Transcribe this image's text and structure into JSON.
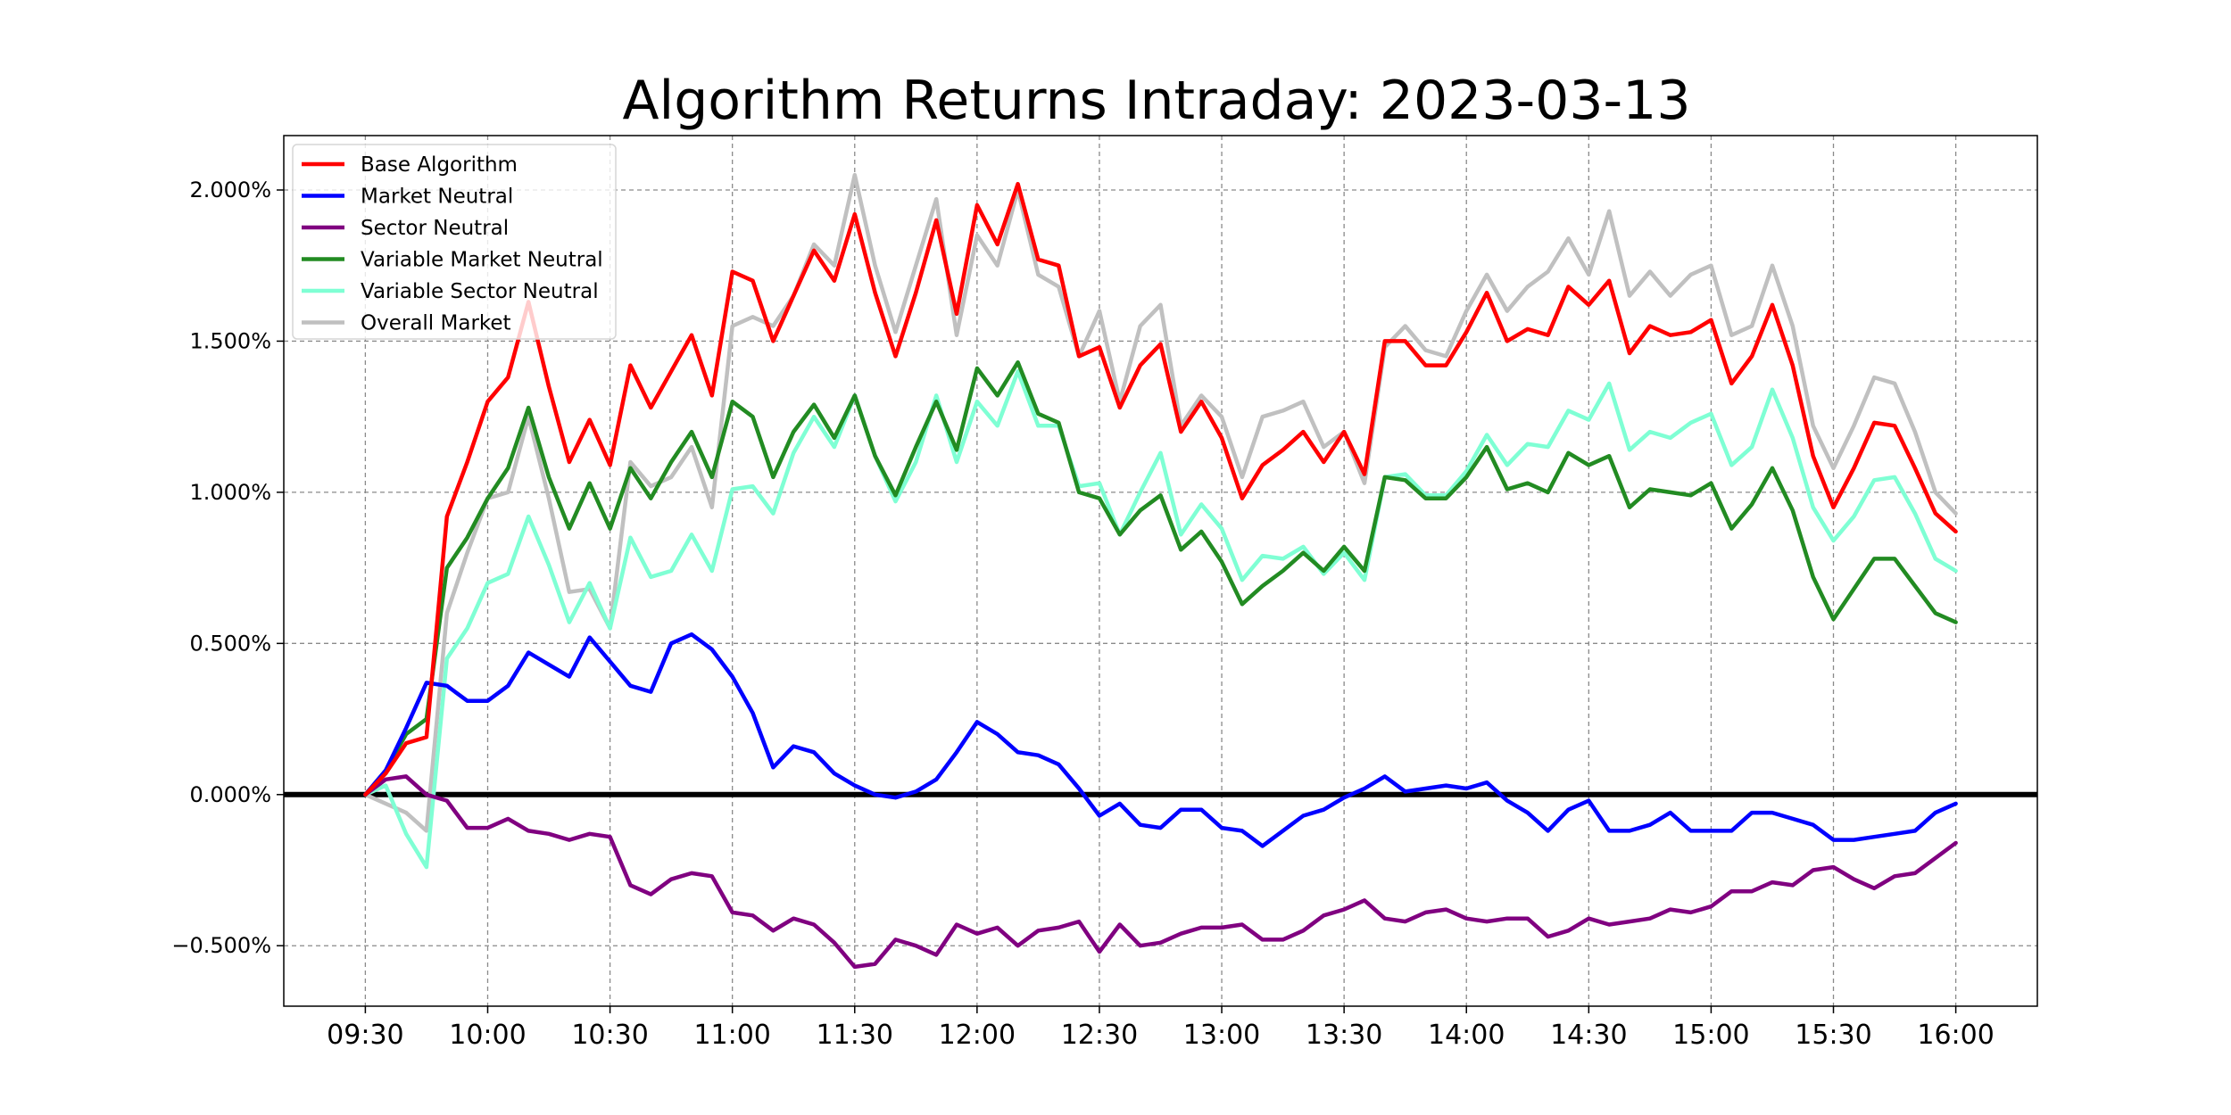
{
  "chart_data": {
    "type": "line",
    "title": "Algorithm Returns Intraday: 2023-03-13",
    "xlabel": "",
    "ylabel": "",
    "x_ticks": [
      "09:30",
      "10:00",
      "10:30",
      "11:00",
      "11:30",
      "12:00",
      "12:30",
      "13:00",
      "13:30",
      "14:00",
      "14:30",
      "15:00",
      "15:30",
      "16:00"
    ],
    "x_range_minutes": [
      -20,
      410
    ],
    "x_minutes": [
      0,
      5,
      10,
      15,
      20,
      25,
      30,
      35,
      40,
      45,
      50,
      55,
      60,
      65,
      70,
      75,
      80,
      85,
      90,
      95,
      100,
      105,
      110,
      115,
      120,
      125,
      130,
      135,
      140,
      145,
      150,
      155,
      160,
      165,
      170,
      175,
      180,
      185,
      190,
      195,
      200,
      205,
      210,
      215,
      220,
      225,
      230,
      235,
      240,
      245,
      250,
      255,
      260,
      265,
      270,
      275,
      280,
      285,
      290,
      295,
      300,
      305,
      310,
      315,
      320,
      325,
      330,
      335,
      340,
      345,
      350,
      355,
      360,
      365,
      370,
      375,
      380,
      385,
      390
    ],
    "ylim": [
      -0.7,
      2.18
    ],
    "y_ticks": [
      -0.5,
      0,
      0.5,
      1.0,
      1.5,
      2.0
    ],
    "y_tick_labels": [
      "−0.500%",
      "0.000%",
      "0.500%",
      "1.000%",
      "1.500%",
      "2.000%"
    ],
    "y_unit": "%",
    "grid": true,
    "zero_line": true,
    "legend_position": "upper-left",
    "series": [
      {
        "name": "Overall Market",
        "color": "#c0c0c0",
        "values": [
          0,
          -0.03,
          -0.06,
          -0.12,
          0.6,
          0.8,
          0.98,
          1.0,
          1.25,
          0.98,
          0.67,
          0.68,
          0.55,
          1.1,
          1.02,
          1.05,
          1.15,
          0.95,
          1.55,
          1.58,
          1.55,
          1.65,
          1.82,
          1.75,
          2.05,
          1.75,
          1.53,
          1.75,
          1.97,
          1.52,
          1.85,
          1.75,
          2.0,
          1.72,
          1.68,
          1.45,
          1.6,
          1.3,
          1.55,
          1.62,
          1.22,
          1.32,
          1.25,
          1.05,
          1.25,
          1.27,
          1.3,
          1.15,
          1.2,
          1.03,
          1.48,
          1.55,
          1.47,
          1.45,
          1.6,
          1.72,
          1.6,
          1.68,
          1.73,
          1.84,
          1.72,
          1.93,
          1.65,
          1.73,
          1.65,
          1.72,
          1.75,
          1.52,
          1.55,
          1.75,
          1.55,
          1.22,
          1.08,
          1.22,
          1.38,
          1.36,
          1.2,
          1.0,
          0.93
        ]
      },
      {
        "name": "Variable Sector Neutral",
        "color": "#7fffd4",
        "values": [
          0,
          0.03,
          -0.13,
          -0.24,
          0.45,
          0.55,
          0.7,
          0.73,
          0.92,
          0.76,
          0.57,
          0.7,
          0.55,
          0.85,
          0.72,
          0.74,
          0.86,
          0.74,
          1.01,
          1.02,
          0.93,
          1.13,
          1.25,
          1.15,
          1.32,
          1.12,
          0.97,
          1.1,
          1.32,
          1.1,
          1.3,
          1.22,
          1.4,
          1.22,
          1.22,
          1.02,
          1.03,
          0.86,
          1.0,
          1.13,
          0.86,
          0.96,
          0.88,
          0.71,
          0.79,
          0.78,
          0.82,
          0.73,
          0.8,
          0.71,
          1.05,
          1.06,
          0.99,
          0.99,
          1.07,
          1.19,
          1.09,
          1.16,
          1.15,
          1.27,
          1.24,
          1.36,
          1.14,
          1.2,
          1.18,
          1.23,
          1.26,
          1.09,
          1.15,
          1.34,
          1.18,
          0.95,
          0.84,
          0.92,
          1.04,
          1.05,
          0.93,
          0.78,
          0.74
        ]
      },
      {
        "name": "Variable Market Neutral",
        "color": "#228b22",
        "values": [
          0,
          0.08,
          0.2,
          0.25,
          0.75,
          0.85,
          0.98,
          1.08,
          1.28,
          1.05,
          0.88,
          1.03,
          0.88,
          1.08,
          0.98,
          1.1,
          1.2,
          1.05,
          1.3,
          1.25,
          1.05,
          1.2,
          1.29,
          1.18,
          1.32,
          1.12,
          0.99,
          1.15,
          1.3,
          1.14,
          1.41,
          1.32,
          1.43,
          1.26,
          1.23,
          1.0,
          0.98,
          0.86,
          0.94,
          0.99,
          0.81,
          0.87,
          0.77,
          0.63,
          0.69,
          0.74,
          0.8,
          0.74,
          0.82,
          0.74,
          1.05,
          1.04,
          0.98,
          0.98,
          1.05,
          1.15,
          1.01,
          1.03,
          1.0,
          1.13,
          1.09,
          1.12,
          0.95,
          1.01,
          1.0,
          0.99,
          1.03,
          0.88,
          0.96,
          1.08,
          0.94,
          0.72,
          0.58,
          0.68,
          0.78,
          0.78,
          0.69,
          0.6,
          0.57
        ]
      },
      {
        "name": "Sector Neutral",
        "color": "#800080",
        "values": [
          0,
          0.05,
          0.06,
          0.0,
          -0.02,
          -0.11,
          -0.11,
          -0.08,
          -0.12,
          -0.13,
          -0.15,
          -0.13,
          -0.14,
          -0.3,
          -0.33,
          -0.28,
          -0.26,
          -0.27,
          -0.39,
          -0.4,
          -0.45,
          -0.41,
          -0.43,
          -0.49,
          -0.57,
          -0.56,
          -0.48,
          -0.5,
          -0.53,
          -0.43,
          -0.46,
          -0.44,
          -0.5,
          -0.45,
          -0.44,
          -0.42,
          -0.52,
          -0.43,
          -0.5,
          -0.49,
          -0.46,
          -0.44,
          -0.44,
          -0.43,
          -0.48,
          -0.48,
          -0.45,
          -0.4,
          -0.38,
          -0.35,
          -0.41,
          -0.42,
          -0.39,
          -0.38,
          -0.41,
          -0.42,
          -0.41,
          -0.41,
          -0.47,
          -0.45,
          -0.41,
          -0.43,
          -0.42,
          -0.41,
          -0.38,
          -0.39,
          -0.37,
          -0.32,
          -0.32,
          -0.29,
          -0.3,
          -0.25,
          -0.24,
          -0.28,
          -0.31,
          -0.27,
          -0.26,
          -0.21,
          -0.16
        ]
      },
      {
        "name": "Market Neutral",
        "color": "#0000ff",
        "values": [
          0,
          0.08,
          0.22,
          0.37,
          0.36,
          0.31,
          0.31,
          0.36,
          0.47,
          0.43,
          0.39,
          0.52,
          0.44,
          0.36,
          0.34,
          0.5,
          0.53,
          0.48,
          0.39,
          0.27,
          0.09,
          0.16,
          0.14,
          0.07,
          0.03,
          0.0,
          -0.01,
          0.01,
          0.05,
          0.14,
          0.24,
          0.2,
          0.14,
          0.13,
          0.1,
          0.02,
          -0.07,
          -0.03,
          -0.1,
          -0.11,
          -0.05,
          -0.05,
          -0.11,
          -0.12,
          -0.17,
          -0.12,
          -0.07,
          -0.05,
          -0.01,
          0.02,
          0.06,
          0.01,
          0.02,
          0.03,
          0.02,
          0.04,
          -0.02,
          -0.06,
          -0.12,
          -0.05,
          -0.02,
          -0.12,
          -0.12,
          -0.1,
          -0.06,
          -0.12,
          -0.12,
          -0.12,
          -0.06,
          -0.06,
          -0.08,
          -0.1,
          -0.15,
          -0.15,
          -0.14,
          -0.13,
          -0.12,
          -0.06,
          -0.03
        ]
      },
      {
        "name": "Base Algorithm",
        "color": "#ff0000",
        "values": [
          0,
          0.07,
          0.17,
          0.19,
          0.92,
          1.1,
          1.3,
          1.38,
          1.63,
          1.35,
          1.1,
          1.24,
          1.09,
          1.42,
          1.28,
          1.4,
          1.52,
          1.32,
          1.73,
          1.7,
          1.5,
          1.65,
          1.8,
          1.7,
          1.92,
          1.66,
          1.45,
          1.66,
          1.9,
          1.59,
          1.95,
          1.82,
          2.02,
          1.77,
          1.75,
          1.45,
          1.48,
          1.28,
          1.42,
          1.49,
          1.2,
          1.3,
          1.18,
          0.98,
          1.09,
          1.14,
          1.2,
          1.1,
          1.2,
          1.06,
          1.5,
          1.5,
          1.42,
          1.42,
          1.53,
          1.66,
          1.5,
          1.54,
          1.52,
          1.68,
          1.62,
          1.7,
          1.46,
          1.55,
          1.52,
          1.53,
          1.57,
          1.36,
          1.45,
          1.62,
          1.42,
          1.12,
          0.95,
          1.08,
          1.23,
          1.22,
          1.08,
          0.93,
          0.87
        ]
      }
    ],
    "legend": [
      "Base Algorithm",
      "Market Neutral",
      "Sector Neutral",
      "Variable Market Neutral",
      "Variable Sector Neutral",
      "Overall Market"
    ]
  }
}
